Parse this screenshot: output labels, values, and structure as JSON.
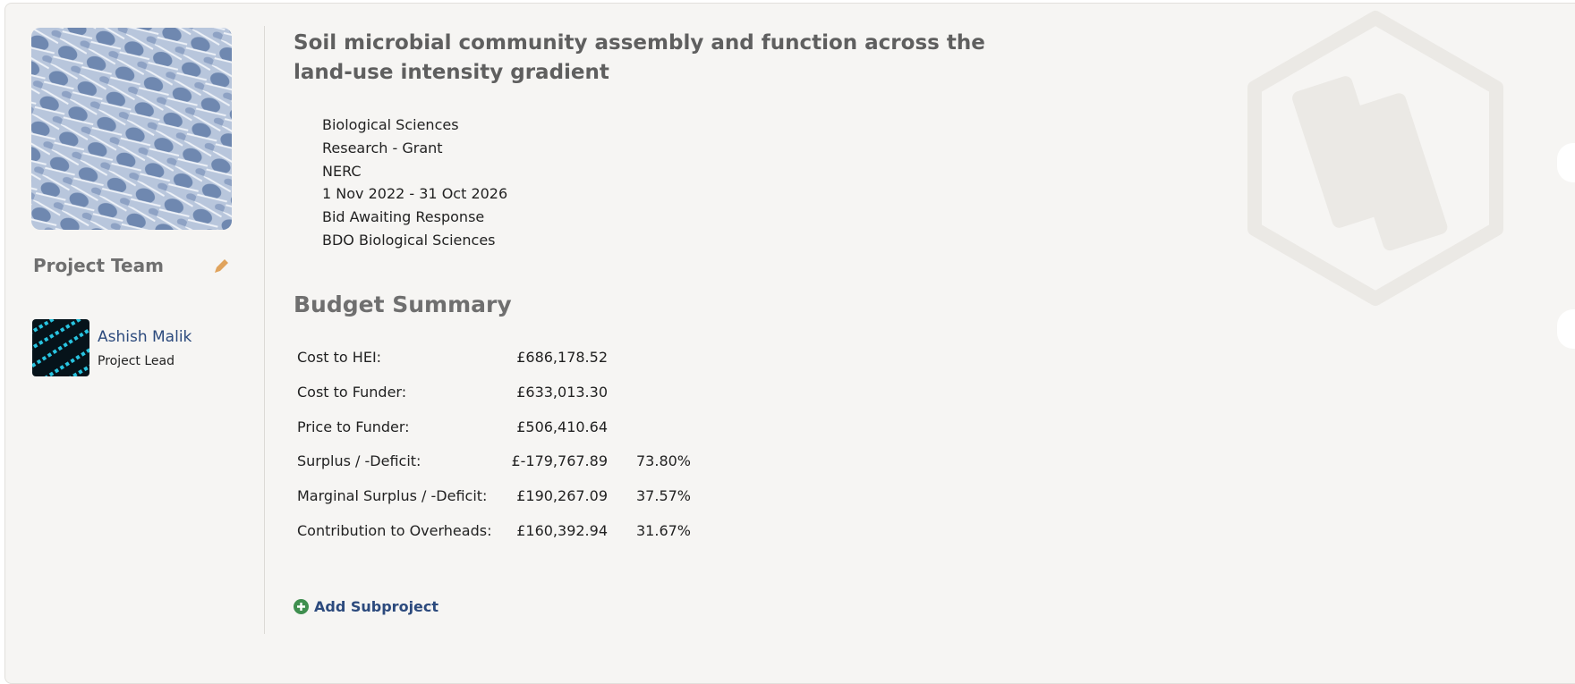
{
  "project": {
    "title": "Soil microbial community assembly and function across the land-use intensity gradient",
    "details": [
      "Biological Sciences",
      "Research - Grant",
      "NERC",
      "1 Nov 2022 - 31 Oct 2026",
      "Bid Awaiting Response",
      "BDO Biological Sciences"
    ]
  },
  "team": {
    "heading": "Project Team",
    "members": [
      {
        "name": "Ashish Malik",
        "role": "Project Lead"
      }
    ]
  },
  "budget": {
    "heading": "Budget Summary",
    "rows": [
      {
        "label": "Cost to HEI:",
        "value": "£686,178.52"
      },
      {
        "label": "Cost to Funder:",
        "value": "£633,013.30"
      },
      {
        "label": "Price to Funder:",
        "value": "£506,410.64"
      },
      {
        "label": "Surplus / -Deficit:",
        "value": "£-179,767.89",
        "percent": "73.80%"
      },
      {
        "label": "Marginal Surplus / -Deficit:",
        "value": "£190,267.09",
        "percent": "37.57%"
      },
      {
        "label": "Contribution to Overheads:",
        "value": "£160,392.94",
        "percent": "31.67%"
      }
    ]
  },
  "actions": {
    "add_subproject": "Add Subproject"
  }
}
